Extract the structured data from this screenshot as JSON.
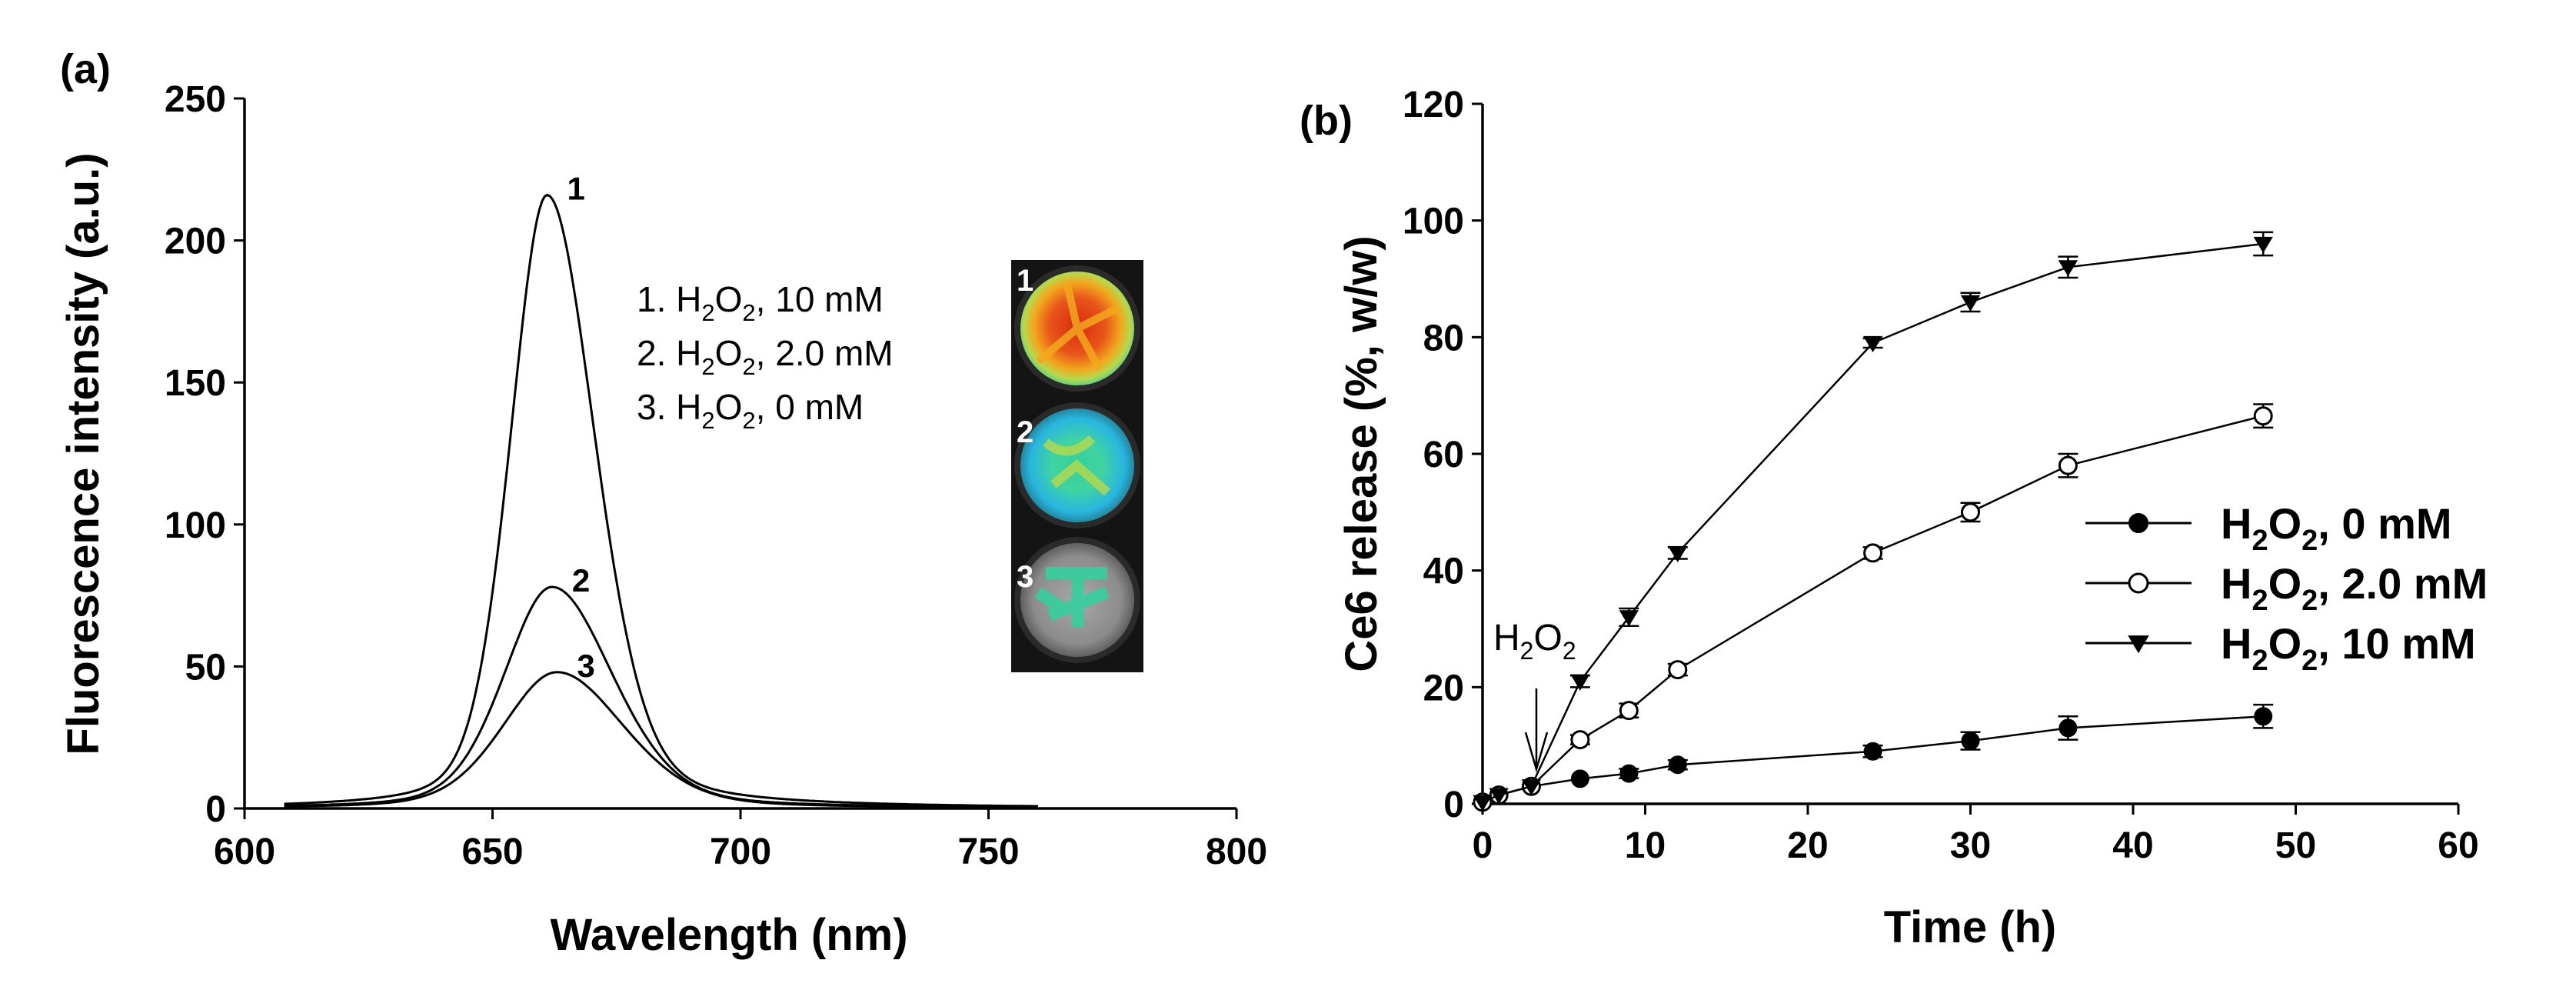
{
  "panel_a": {
    "label": "(a)",
    "inset": {
      "labels": [
        "1",
        "2",
        "3"
      ]
    }
  },
  "panel_b": {
    "label": "(b)",
    "arrow_label": {
      "base": "H",
      "sub1": "2",
      "mid": "O",
      "sub2": "2"
    }
  },
  "colors": {
    "line": "#000000",
    "hot": "#d92a10",
    "warm": "#f2a81e",
    "mid": "#b8d84a",
    "cool": "#34cf9c",
    "cold": "#28b6e0",
    "well_gray": "#8c8c8c",
    "inset_bg": "#141414"
  },
  "chart_data": [
    {
      "type": "line",
      "title": "",
      "xlabel": "Wavelength (nm)",
      "ylabel": "Fluorescence intensity (a.u.)",
      "xlim": [
        600,
        800
      ],
      "ylim": [
        0,
        250
      ],
      "xticks": [
        600,
        650,
        700,
        750,
        800
      ],
      "yticks": [
        0,
        50,
        100,
        150,
        200,
        250
      ],
      "grid": false,
      "legend_placement": "top-center",
      "legend": [
        {
          "num": "1.",
          "base": "H",
          "sub1": "2",
          "mid": "O",
          "sub2": "2",
          "rest": ", 10 mM"
        },
        {
          "num": "2.",
          "base": "H",
          "sub1": "2",
          "mid": "O",
          "sub2": "2",
          "rest": ", 2.0 mM"
        },
        {
          "num": "3.",
          "base": "H",
          "sub1": "2",
          "mid": "O",
          "sub2": "2",
          "rest": ", 0 mM"
        }
      ],
      "series": [
        {
          "name": "1",
          "label": "1",
          "peak_wavelength": 661,
          "peak_intensity": 216,
          "hwhm_left": 8.8,
          "hwhm_right": 11.5
        },
        {
          "name": "2",
          "label": "2",
          "peak_wavelength": 662,
          "peak_intensity": 78,
          "hwhm_left": 11.5,
          "hwhm_right": 14.5
        },
        {
          "name": "3",
          "label": "3",
          "peak_wavelength": 663,
          "peak_intensity": 48,
          "hwhm_left": 13.0,
          "hwhm_right": 16.0
        }
      ]
    },
    {
      "type": "line",
      "title": "",
      "xlabel": "Time (h)",
      "ylabel": "Ce6 release (%, w/w)",
      "xlim": [
        0,
        60
      ],
      "ylim": [
        0,
        120
      ],
      "xticks": [
        0,
        10,
        20,
        30,
        40,
        50,
        60
      ],
      "yticks": [
        0,
        20,
        40,
        60,
        80,
        100,
        120
      ],
      "grid": false,
      "legend_placement": "right",
      "series": [
        {
          "name": "H2O2, 0 mM",
          "legend": {
            "base": "H",
            "sub1": "2",
            "mid": "O",
            "sub2": "2",
            "rest": ", 0 mM"
          },
          "marker": "filled-circle",
          "x": [
            0,
            1,
            3,
            6,
            9,
            12,
            24,
            30,
            36,
            48
          ],
          "y": [
            0.3,
            1.5,
            3.0,
            4.3,
            5.2,
            6.7,
            9.0,
            10.8,
            13.0,
            15.0
          ],
          "err": [
            0.3,
            0.4,
            0.5,
            0.6,
            0.8,
            0.8,
            1.0,
            1.5,
            2.0,
            2.0
          ]
        },
        {
          "name": "H2O2, 2.0 mM",
          "legend": {
            "base": "H",
            "sub1": "2",
            "mid": "O",
            "sub2": "2",
            "rest": ", 2.0 mM"
          },
          "marker": "open-circle",
          "x": [
            0,
            1,
            3,
            6,
            9,
            12,
            24,
            30,
            36,
            48
          ],
          "y": [
            0.3,
            1.5,
            3.0,
            11.0,
            16.0,
            23.0,
            43.0,
            50.0,
            58.0,
            66.5
          ],
          "err": [
            0.3,
            0.4,
            0.5,
            0.8,
            1.2,
            1.0,
            1.0,
            1.6,
            2.0,
            2.0
          ]
        },
        {
          "name": "H2O2, 10 mM",
          "legend": {
            "base": "H",
            "sub1": "2",
            "mid": "O",
            "sub2": "2",
            "rest": ", 10 mM"
          },
          "marker": "filled-triangle-down",
          "x": [
            0,
            1,
            3,
            6,
            9,
            12,
            24,
            30,
            36,
            48
          ],
          "y": [
            0.3,
            1.5,
            3.0,
            21.0,
            32.0,
            43.0,
            79.0,
            86.0,
            92.0,
            96.0
          ],
          "err": [
            0.3,
            0.4,
            0.5,
            1.0,
            1.5,
            1.0,
            0.8,
            1.6,
            1.8,
            2.0
          ]
        }
      ],
      "annotation": {
        "text": "H2O2",
        "x": 3,
        "y": 3.0
      }
    }
  ]
}
